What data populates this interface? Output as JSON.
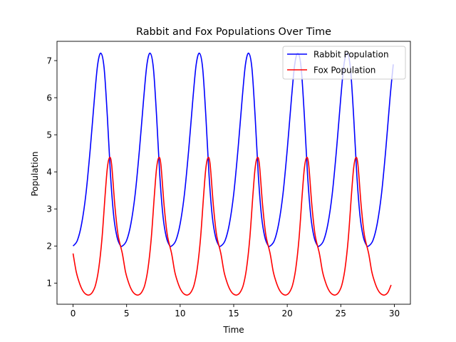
{
  "chart_data": {
    "type": "line",
    "title": "Rabbit and Fox Populations Over Time",
    "xlabel": "Time",
    "ylabel": "Population",
    "xlim": [
      -1.5,
      31.5
    ],
    "ylim": [
      0.43,
      7.52
    ],
    "xticks": [
      0,
      5,
      10,
      15,
      20,
      25,
      30
    ],
    "yticks": [
      1,
      2,
      3,
      4,
      5,
      6,
      7
    ],
    "grid": false,
    "legend_position": "top-right",
    "period": 4.6,
    "series": [
      {
        "name": "Rabbit Population",
        "color": "#0000ff",
        "x": [
          0,
          0.4,
          0.8,
          1.2,
          1.6,
          2.0,
          2.3,
          2.6,
          2.9,
          3.2,
          3.5,
          3.8,
          4.1,
          4.4,
          4.6
        ],
        "y": [
          2.0,
          2.15,
          2.6,
          3.4,
          4.6,
          6.0,
          6.9,
          7.2,
          6.8,
          5.5,
          3.9,
          2.8,
          2.25,
          2.02,
          2.0
        ]
      },
      {
        "name": "Fox Population",
        "color": "#ff0000",
        "x": [
          0,
          0.3,
          0.6,
          0.9,
          1.2,
          1.5,
          1.8,
          2.1,
          2.4,
          2.7,
          3.0,
          3.2,
          3.4,
          3.6,
          3.9,
          4.2,
          4.6
        ],
        "y": [
          1.8,
          1.3,
          1.0,
          0.8,
          0.7,
          0.68,
          0.75,
          0.95,
          1.4,
          2.2,
          3.4,
          4.1,
          4.38,
          4.2,
          3.1,
          2.3,
          1.8
        ]
      }
    ],
    "x_end": 29.9
  }
}
